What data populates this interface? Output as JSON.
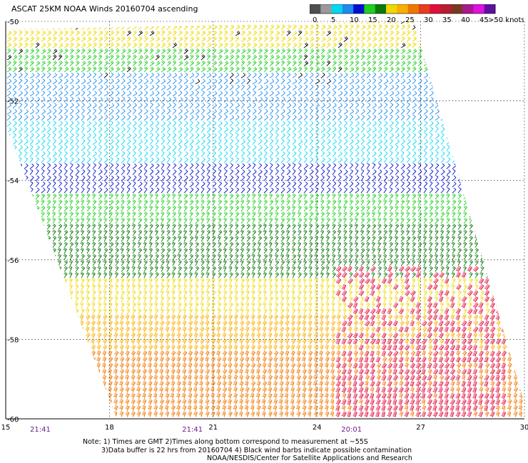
{
  "title": "ASCAT 25KM NOAA Winds 20160704 ascending",
  "legend": {
    "ticks": [
      "0",
      "5",
      "10",
      "15",
      "20",
      "25",
      "30",
      "35",
      "40",
      "45",
      ">50 knots"
    ],
    "colors": [
      "#505050",
      "#9a9a9a",
      "#00d8f0",
      "#1c8cf0",
      "#0010d0",
      "#20d020",
      "#0a7a0a",
      "#f0d800",
      "#f8b000",
      "#f07800",
      "#e83c1e",
      "#e0103c",
      "#b81c30",
      "#7a3a20",
      "#a81890",
      "#e010e0",
      "#6010a0"
    ]
  },
  "axes": {
    "lat_ticks": [
      "-50",
      "-52",
      "-54",
      "-56",
      "-58",
      "-60"
    ],
    "lon_ticks": [
      "15",
      "18",
      "21",
      "24",
      "27",
      "30"
    ],
    "time_labels": [
      "21:41",
      "21:41",
      "20:01"
    ]
  },
  "wind_field": {
    "swath_polygon_lonlat": [
      [
        15.0,
        -50.2
      ],
      [
        26.8,
        -50.0
      ],
      [
        30.2,
        -60.2
      ],
      [
        18.3,
        -60.2
      ],
      [
        15.0,
        -52.6
      ]
    ],
    "bands": [
      {
        "lat_max": -50.0,
        "lat_min": -50.7,
        "speed_knots": 22,
        "color": "#f0d800"
      },
      {
        "lat_max": -50.7,
        "lat_min": -51.4,
        "speed_knots": 18,
        "color": "#20d020"
      },
      {
        "lat_max": -51.4,
        "lat_min": -52.6,
        "speed_knots": 10,
        "color": "#1c8cf0"
      },
      {
        "lat_max": -52.6,
        "lat_min": -53.7,
        "speed_knots": 8,
        "color": "#00d8f0"
      },
      {
        "lat_max": -53.7,
        "lat_min": -54.4,
        "speed_knots": 12,
        "color": "#0010d0"
      },
      {
        "lat_max": -54.4,
        "lat_min": -55.2,
        "speed_knots": 17,
        "color": "#20d020"
      },
      {
        "lat_max": -55.2,
        "lat_min": -56.6,
        "speed_knots": 19,
        "color": "#0a7a0a"
      },
      {
        "lat_max": -56.6,
        "lat_min": -57.4,
        "speed_knots": 22,
        "color": "#f0d800"
      },
      {
        "lat_max": -57.4,
        "lat_min": -58.3,
        "speed_knots": 27,
        "color": "#f8b000"
      },
      {
        "lat_max": -58.3,
        "lat_min": -60.0,
        "speed_knots": 31,
        "color": "#f07800"
      }
    ],
    "high_wind_core": {
      "lon_min": 24.5,
      "lon_max": 29.5,
      "lat_min": -60.0,
      "lat_max": -56.2,
      "speed_knots": 36,
      "color": "#e0103c"
    },
    "contamination_color": "#000000"
  },
  "notes": [
    "Note: 1) Times are GMT 2)Times along bottom correspond to measurement at ~55S",
    "3)Data buffer is 22 hrs from 20160704 4) Black wind barbs indicate possible contamination",
    "NOAA/NESDIS/Center for Satellite Applications and Research"
  ]
}
